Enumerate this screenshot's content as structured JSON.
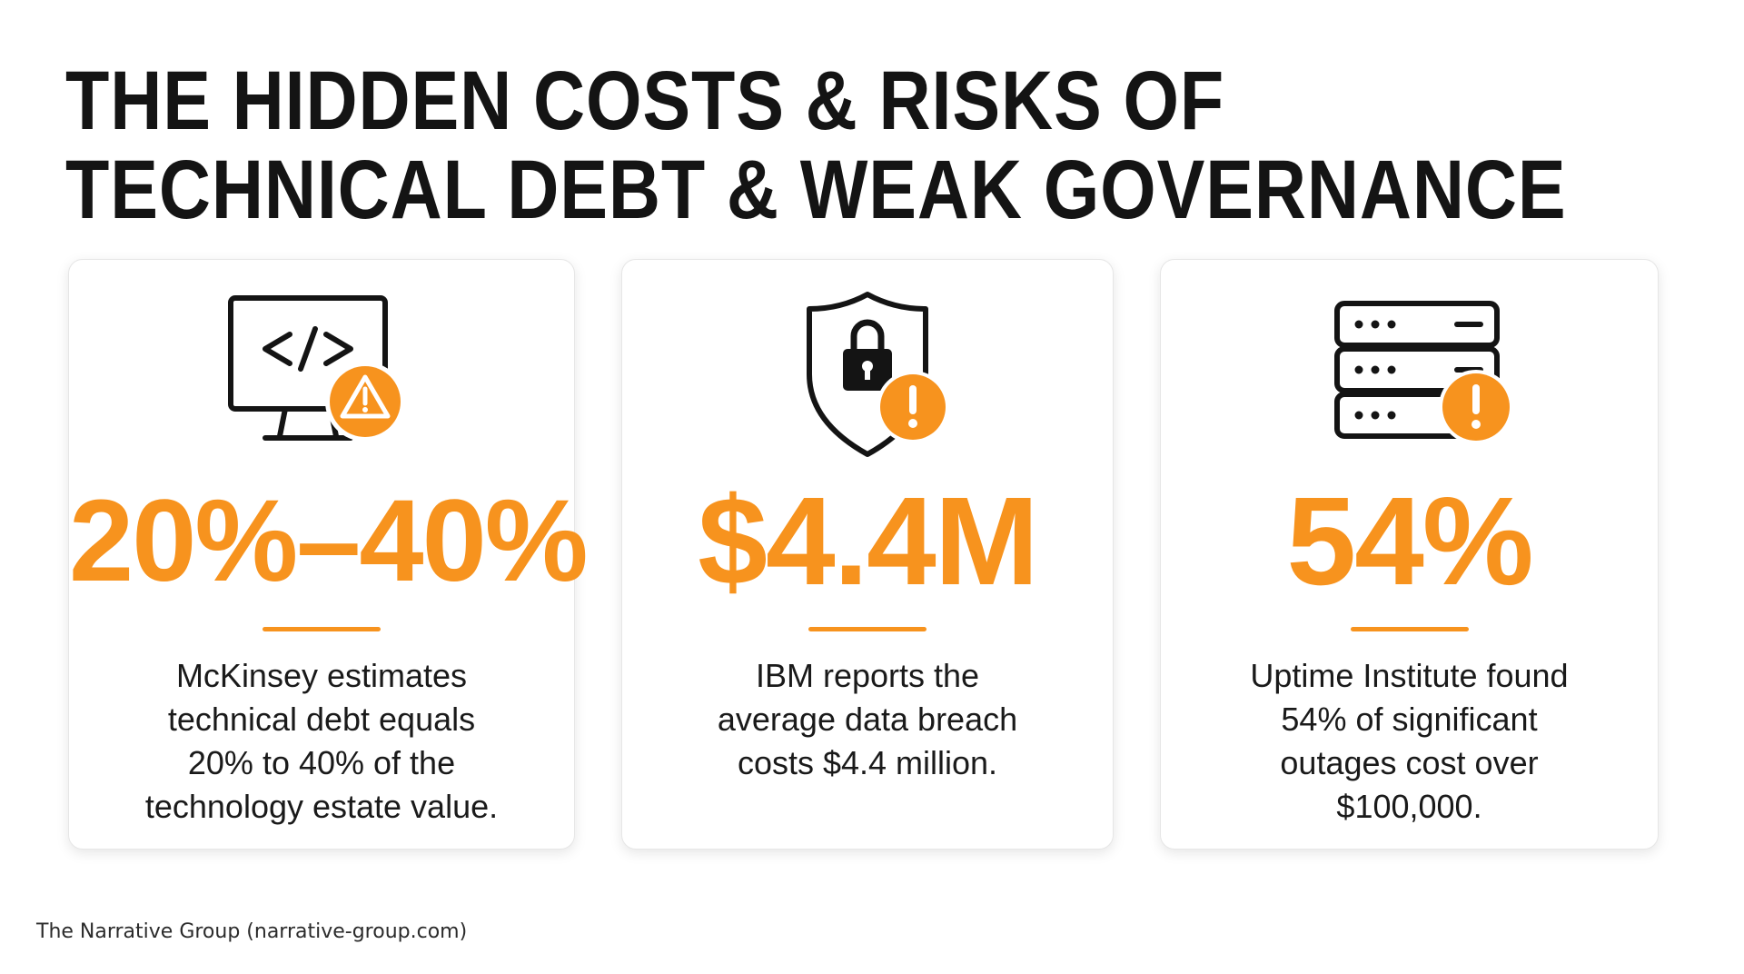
{
  "title": {
    "line1": "THE HIDDEN COSTS & RISKS OF",
    "line2": "TECHNICAL DEBT & WEAK GOVERNANCE"
  },
  "colors": {
    "accent": "#f7931e",
    "text": "#141414",
    "card_border": "#e6e6e6"
  },
  "cards": [
    {
      "icon": "monitor-code-warning-icon",
      "stat": "20%–40%",
      "description_lines": [
        "McKinsey estimates",
        "technical debt equals",
        "20% to 40% of the",
        "technology estate value."
      ]
    },
    {
      "icon": "shield-lock-alert-icon",
      "stat": "$4.4M",
      "description_lines": [
        "IBM reports the",
        "average data breach",
        "costs $4.4 million."
      ]
    },
    {
      "icon": "server-rack-alert-icon",
      "stat": "54%",
      "description_lines": [
        "Uptime Institute found",
        "54% of significant",
        "outages cost over",
        "$100,000."
      ]
    }
  ],
  "footer": "The Narrative Group (narrative-group.com)"
}
